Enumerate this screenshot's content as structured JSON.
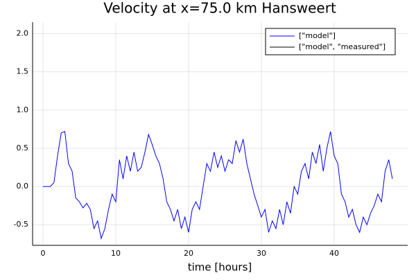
{
  "chart_data": {
    "type": "line",
    "title": "Velocity at x=75.0 km Hansweert",
    "x_label": "time [hours]",
    "x": [
      0,
      0.5,
      1,
      1.5,
      2,
      2.5,
      3,
      3.5,
      4,
      4.5,
      5,
      5.5,
      6,
      6.5,
      7,
      7.5,
      8,
      8.5,
      9,
      9.5,
      10,
      10.5,
      11,
      11.5,
      12,
      12.5,
      13,
      13.5,
      14,
      14.5,
      15,
      15.5,
      16,
      16.5,
      17,
      17.5,
      18,
      18.5,
      19,
      19.5,
      20,
      20.5,
      21,
      21.5,
      22,
      22.5,
      23,
      23.5,
      24,
      24.5,
      25,
      25.5,
      26,
      26.5,
      27,
      27.5,
      28,
      28.5,
      29,
      29.5,
      30,
      30.5,
      31,
      31.5,
      32,
      32.5,
      33,
      33.5,
      34,
      34.5,
      35,
      35.5,
      36,
      36.5,
      37,
      37.5,
      38,
      38.5,
      39,
      39.5,
      40,
      40.5,
      41,
      41.5,
      42,
      42.5,
      43,
      43.5,
      44,
      44.5,
      45,
      45.5,
      46,
      46.5,
      47,
      47.5,
      48
    ],
    "series": [
      {
        "name": "[\"model\"]",
        "color": "#0000ff",
        "values": [
          0,
          0,
          0,
          0.05,
          0.4,
          0.7,
          0.72,
          0.3,
          0.2,
          -0.15,
          -0.2,
          -0.28,
          -0.22,
          -0.3,
          -0.55,
          -0.45,
          -0.68,
          -0.55,
          -0.3,
          -0.1,
          -0.2,
          0.35,
          0.1,
          0.4,
          0.2,
          0.45,
          0.2,
          0.25,
          0.45,
          0.68,
          0.55,
          0.4,
          0.3,
          0.1,
          -0.2,
          -0.3,
          -0.45,
          -0.3,
          -0.55,
          -0.4,
          -0.6,
          -0.3,
          -0.2,
          -0.3,
          0.0,
          0.3,
          0.2,
          0.45,
          0.25,
          0.4,
          0.2,
          0.35,
          0.3,
          0.6,
          0.45,
          0.62,
          0.3,
          0.1,
          -0.1,
          -0.25,
          -0.4,
          -0.3,
          -0.6,
          -0.45,
          -0.55,
          -0.3,
          -0.5,
          -0.2,
          -0.35,
          0.0,
          -0.1,
          0.2,
          0.3,
          0.1,
          0.45,
          0.3,
          0.55,
          0.2,
          0.5,
          0.72,
          0.4,
          0.3,
          -0.1,
          -0.2,
          -0.4,
          -0.3,
          -0.5,
          -0.6,
          -0.4,
          -0.5,
          -0.35,
          -0.25,
          -0.1,
          -0.2,
          0.2,
          0.35,
          0.1
        ]
      },
      {
        "name": "[\"model\", \"measured\"]",
        "color": "#000000",
        "values": [
          null,
          null,
          null,
          null,
          null,
          null,
          null,
          null,
          null,
          null,
          null,
          null,
          null,
          null,
          null,
          null,
          null,
          null,
          null,
          null,
          null,
          null,
          null,
          null,
          null,
          null,
          null,
          null,
          null,
          null,
          null,
          null,
          null,
          null,
          null,
          null,
          null,
          null,
          null,
          null,
          null,
          null,
          null,
          null,
          null,
          null,
          null,
          null,
          null,
          null,
          null,
          null,
          null,
          null,
          null,
          null,
          null,
          null,
          null,
          null,
          null,
          null,
          null,
          null,
          null,
          null,
          null,
          null,
          null,
          null,
          null,
          null,
          null,
          null,
          null,
          null,
          null,
          null,
          null,
          null,
          null,
          null,
          null,
          null,
          null,
          null,
          null,
          null,
          null,
          null,
          null,
          null,
          null,
          null,
          null,
          null,
          null
        ]
      }
    ],
    "xlim": [
      -1.43,
      50.1
    ],
    "xticks": [
      0,
      10,
      20,
      30,
      40
    ],
    "ylim": [
      -0.77,
      2.15
    ],
    "yticks": [
      -0.5,
      {
        "value": 0,
        "label": "0.0"
      },
      0.5,
      {
        "value": 1,
        "label": "1.0"
      },
      1.5,
      {
        "value": 2,
        "label": "2.0"
      }
    ],
    "grid": true,
    "legend": "top-right"
  }
}
